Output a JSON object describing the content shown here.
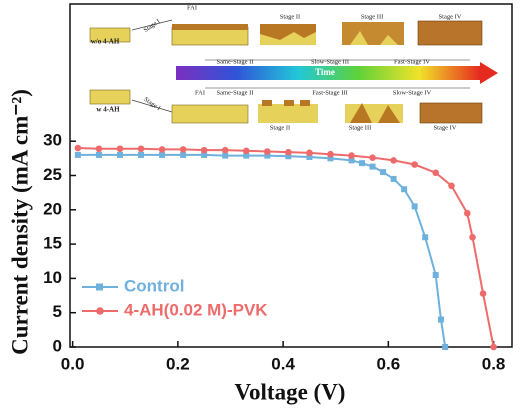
{
  "chart_data": {
    "type": "line",
    "x_label": "Voltage (V)",
    "y_label": "Current density (mA cm⁻²)",
    "xlim": [
      -0.005,
      0.835
    ],
    "ylim": [
      0,
      50
    ],
    "xticks": [
      {
        "value": 0,
        "label": "0.0"
      },
      0.2,
      0.4,
      0.6,
      0.8
    ],
    "yticks": [
      0,
      5,
      10,
      15,
      20,
      25,
      30
    ],
    "legend": "lower left",
    "series": [
      {
        "name": "Control",
        "color": "#6fb1dd",
        "marker": "square",
        "x": [
          0.01,
          0.05,
          0.09,
          0.13,
          0.17,
          0.21,
          0.25,
          0.29,
          0.33,
          0.37,
          0.41,
          0.45,
          0.49,
          0.53,
          0.55,
          0.57,
          0.59,
          0.61,
          0.63,
          0.65,
          0.67,
          0.69,
          0.7,
          0.708
        ],
        "values": [
          28.0,
          28.0,
          28.0,
          28.0,
          28.0,
          28.0,
          28.0,
          27.9,
          27.9,
          27.9,
          27.8,
          27.7,
          27.5,
          27.2,
          26.8,
          26.3,
          25.5,
          24.5,
          23.0,
          20.5,
          16.0,
          10.5,
          4.0,
          0
        ]
      },
      {
        "name": "4-AH(0.02 M)-PVK",
        "color": "#ee6b6b",
        "marker": "circle",
        "x": [
          0.01,
          0.05,
          0.09,
          0.13,
          0.17,
          0.21,
          0.25,
          0.29,
          0.33,
          0.37,
          0.41,
          0.45,
          0.49,
          0.53,
          0.57,
          0.61,
          0.65,
          0.69,
          0.72,
          0.75,
          0.76,
          0.78,
          0.8
        ],
        "values": [
          29.0,
          28.9,
          28.9,
          28.9,
          28.8,
          28.8,
          28.7,
          28.7,
          28.6,
          28.5,
          28.4,
          28.3,
          28.1,
          27.9,
          27.6,
          27.2,
          26.6,
          25.4,
          23.5,
          19.5,
          16.0,
          7.8,
          0
        ]
      }
    ],
    "inset_texts": [
      "w/o 4-AH",
      "Stage I",
      "FAI",
      "Stage II",
      "Stage III",
      "Stage IV",
      "Time",
      "Same-Stage II",
      "Slow-Stage III",
      "Fast-Stage IV",
      "w 4-AH",
      "Same-Stage II",
      "Fast-Stage III",
      "Slow-Stage IV",
      "Stage I",
      "FAI",
      "Stage II",
      "Stage III",
      "Stage IV"
    ]
  }
}
